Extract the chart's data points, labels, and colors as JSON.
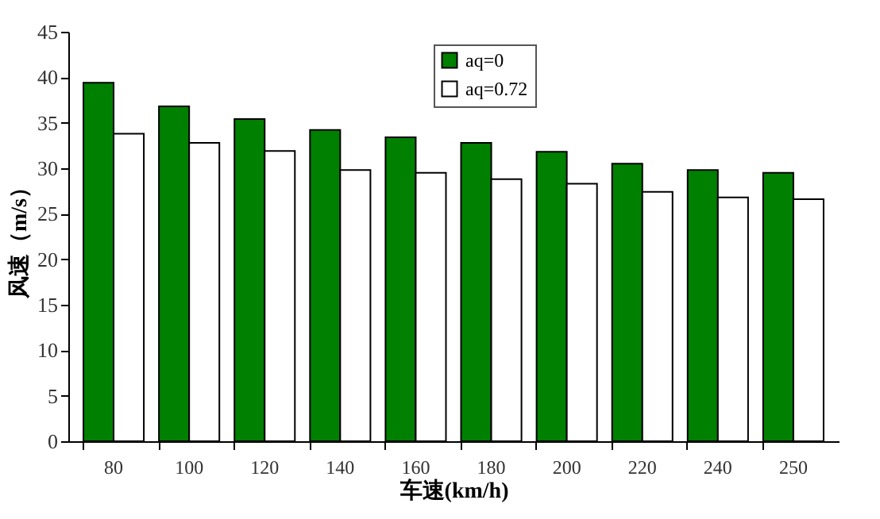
{
  "chart_data": {
    "type": "bar",
    "xlabel": "车速(km/h)",
    "ylabel": "风速（m/s）",
    "categories": [
      "80",
      "100",
      "120",
      "140",
      "160",
      "180",
      "200",
      "220",
      "240",
      "250"
    ],
    "series": [
      {
        "name": "aq=0",
        "color": "#008000",
        "values": [
          39.4,
          36.8,
          35.4,
          34.2,
          33.4,
          32.8,
          31.8,
          30.5,
          29.8,
          29.5
        ]
      },
      {
        "name": "aq=0.72",
        "color": "#ffffff",
        "values": [
          33.8,
          32.8,
          31.9,
          29.8,
          29.5,
          28.8,
          28.3,
          27.4,
          26.8,
          26.6
        ]
      }
    ],
    "ylim": [
      0,
      45
    ],
    "yticks": [
      0,
      5,
      10,
      15,
      20,
      25,
      30,
      35,
      40,
      45
    ],
    "grid": false,
    "legend": "top"
  }
}
